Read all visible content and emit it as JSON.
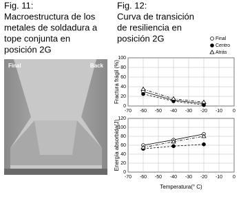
{
  "fig11": {
    "label": "Fig. 11:",
    "caption": [
      "Macroestructura de los",
      "metales de soldadura a",
      "tope conjunta en",
      "posición 2G"
    ],
    "photo_labels": [
      "Final",
      "Back"
    ]
  },
  "fig12": {
    "label": "Fig. 12:",
    "caption": [
      "Curva de transición",
      "de resiliencia en",
      "posición 2G"
    ]
  },
  "chart_data": [
    {
      "type": "line",
      "ylabel": "Fractura frágil (%)",
      "xlim": [
        -70,
        0
      ],
      "xticks": [
        -70,
        -60,
        -50,
        -40,
        -30,
        -20,
        -10,
        0
      ],
      "ylim": [
        0,
        100
      ],
      "yticks": [
        0,
        20,
        40,
        60,
        80,
        100
      ],
      "grid": true,
      "series": [
        {
          "name": "Final",
          "marker": "open-circle",
          "dash": "solid",
          "x": [
            -60,
            -40,
            -20
          ],
          "values": [
            30,
            12,
            5
          ]
        },
        {
          "name": "Centro",
          "marker": "filled-circle",
          "dash": "dashed",
          "x": [
            -60,
            -40,
            -20
          ],
          "values": [
            25,
            10,
            2
          ]
        },
        {
          "name": "Atrás",
          "marker": "open-triangle",
          "dash": "dashdot",
          "x": [
            -60,
            -40,
            -20
          ],
          "values": [
            35,
            15,
            8
          ]
        }
      ]
    },
    {
      "type": "line",
      "ylabel": "Energía absorbida(J)",
      "xlabel": "Temperatura(° C)",
      "xlim": [
        -70,
        0
      ],
      "xticks": [
        -70,
        -60,
        -50,
        -40,
        -30,
        -20,
        -10,
        0
      ],
      "ylim": [
        0,
        120
      ],
      "yticks": [
        0,
        20,
        40,
        60,
        80,
        100,
        120
      ],
      "grid": true,
      "series": [
        {
          "marker": "open-circle",
          "dash": "solid",
          "x": [
            -60,
            -40,
            -20
          ],
          "values": [
            60,
            72,
            85
          ]
        },
        {
          "marker": "filled-circle",
          "dash": "dashed",
          "x": [
            -60,
            -40,
            -20
          ],
          "values": [
            52,
            58,
            62
          ]
        },
        {
          "marker": "open-triangle",
          "dash": "dashdot",
          "x": [
            -60,
            -40,
            -20
          ],
          "values": [
            55,
            68,
            80
          ]
        }
      ]
    }
  ]
}
